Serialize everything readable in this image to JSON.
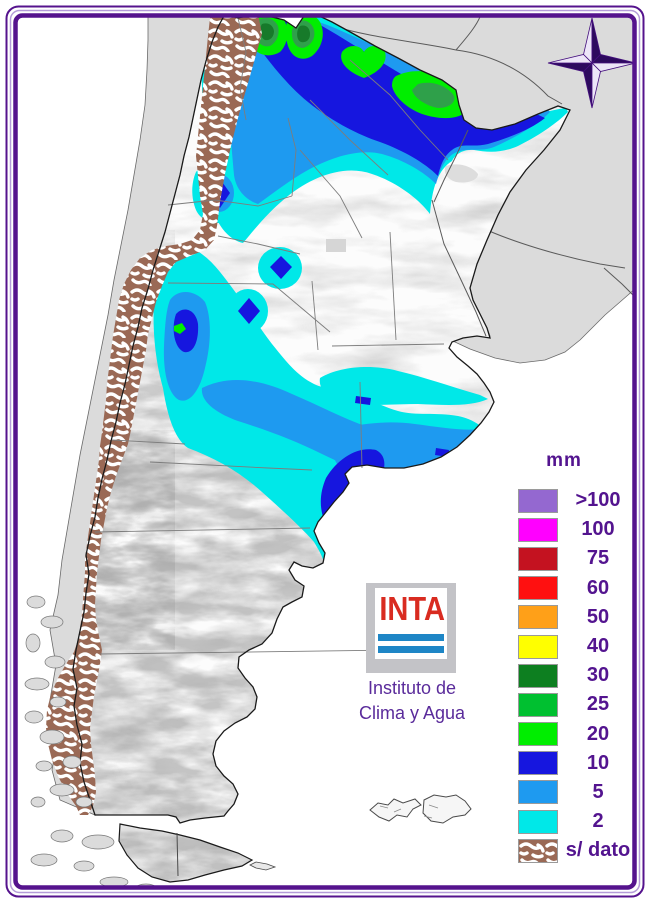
{
  "legend": {
    "title": "mm",
    "entries": [
      {
        "key": "gt100",
        "label": ">100",
        "color": "#9468D0"
      },
      {
        "key": "v100",
        "label": "100",
        "color": "#FF00FF"
      },
      {
        "key": "v75",
        "label": "75",
        "color": "#C41220"
      },
      {
        "key": "v60",
        "label": "60",
        "color": "#FF1010"
      },
      {
        "key": "v50",
        "label": "50",
        "color": "#FFA018"
      },
      {
        "key": "v40",
        "label": "40",
        "color": "#FFFF00"
      },
      {
        "key": "v30",
        "label": "30",
        "color": "#0D7F20"
      },
      {
        "key": "v25",
        "label": "25",
        "color": "#00C030"
      },
      {
        "key": "v20",
        "label": "20",
        "color": "#00EE00"
      },
      {
        "key": "v10",
        "label": "10",
        "color": "#1616DF"
      },
      {
        "key": "v5",
        "label": "5",
        "color": "#1E9AF0"
      },
      {
        "key": "v2",
        "label": "2",
        "color": "#00E8E8"
      },
      {
        "key": "nodata",
        "label": "s/ dato",
        "color": "#9A6955",
        "pattern": "brown-hatch"
      }
    ]
  },
  "logo": {
    "acronym": "INTA",
    "caption_line1": "Instituto de",
    "caption_line2": "Clima y Agua",
    "red": "#D92B20",
    "bar_blue": "#1E86C6"
  },
  "map": {
    "units_label": "mm",
    "no_data_label": "s/ dato",
    "outside_color": "#DBDBDB",
    "land_color": "#FCFCFC",
    "frame_color": "#55138D",
    "text_purple": "#53148F"
  }
}
